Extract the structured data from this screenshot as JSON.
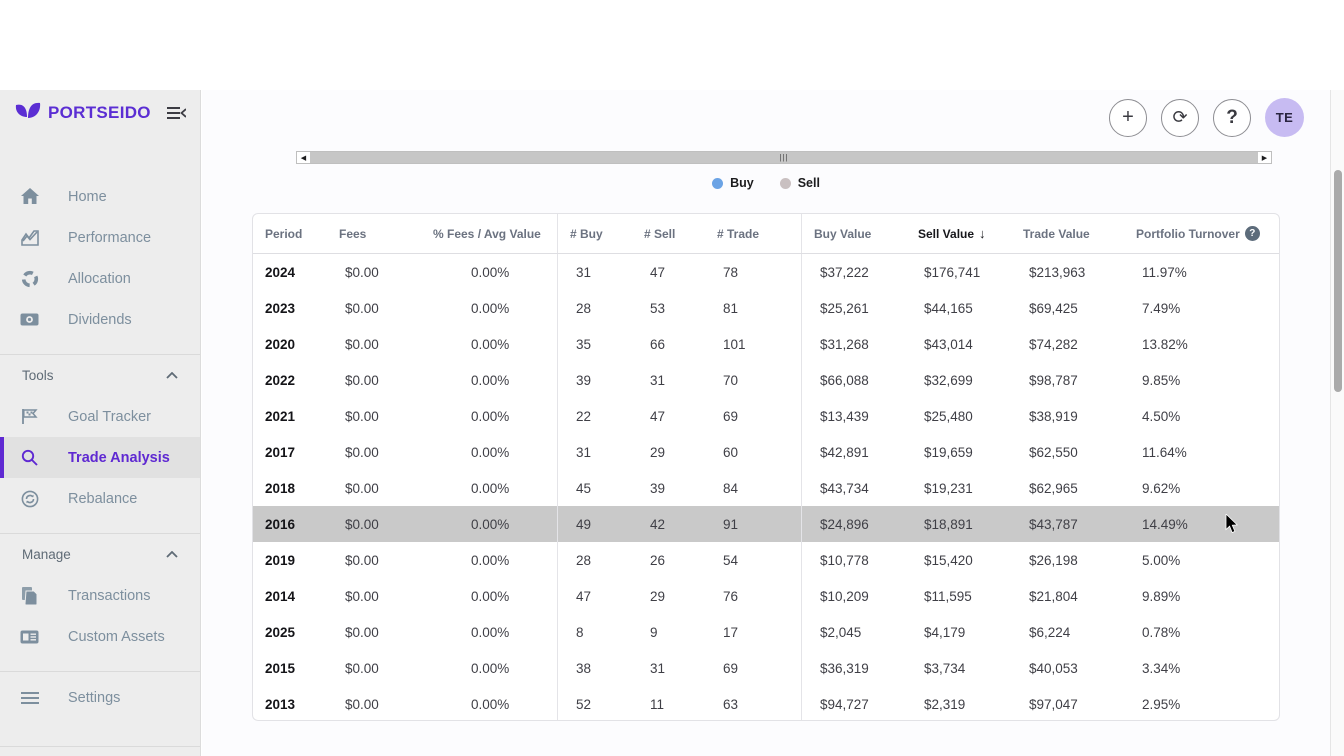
{
  "brand": {
    "name": "PORTSEIDO",
    "logo_color": "#5b2ed3"
  },
  "sidebar": {
    "items": [
      {
        "icon": "home-icon",
        "label": "Home"
      },
      {
        "icon": "performance-icon",
        "label": "Performance"
      },
      {
        "icon": "allocation-icon",
        "label": "Allocation"
      },
      {
        "icon": "dividends-icon",
        "label": "Dividends"
      }
    ],
    "tools_section": {
      "label": "Tools",
      "items": [
        {
          "icon": "flag-icon",
          "label": "Goal Tracker"
        },
        {
          "icon": "search-icon",
          "label": "Trade Analysis",
          "active": true
        },
        {
          "icon": "rebalance-icon",
          "label": "Rebalance"
        }
      ]
    },
    "manage_section": {
      "label": "Manage",
      "items": [
        {
          "icon": "documents-icon",
          "label": "Transactions"
        },
        {
          "icon": "card-icon",
          "label": "Custom Assets"
        }
      ]
    },
    "settings_label": "Settings"
  },
  "header": {
    "buttons": [
      {
        "icon": "plus-icon",
        "glyph": "+"
      },
      {
        "icon": "refresh-icon",
        "glyph": "⟳"
      },
      {
        "icon": "help-icon",
        "glyph": "?"
      }
    ],
    "avatar_initials": "TE"
  },
  "legend": {
    "buy_label": "Buy",
    "sell_label": "Sell",
    "buy_color": "#6ba3e5",
    "sell_color": "#c9c0c1"
  },
  "table": {
    "sorted_by": "Sell Value",
    "sort_direction": "desc",
    "highlight_color": "#c9c9c9",
    "highlighted_period": "2016",
    "columns": [
      {
        "label": "Period"
      },
      {
        "label": "Fees"
      },
      {
        "label": "% Fees / Avg Value"
      },
      {
        "label": "# Buy"
      },
      {
        "label": "# Sell"
      },
      {
        "label": "# Trade"
      },
      {
        "label": "Buy Value"
      },
      {
        "label": "Sell Value",
        "sorted": "desc"
      },
      {
        "label": "Trade Value"
      },
      {
        "label": "Portfolio Turnover",
        "help": true
      }
    ],
    "rows": [
      {
        "cells": [
          "2024",
          "$0.00",
          "0.00%",
          "31",
          "47",
          "78",
          "$37,222",
          "$176,741",
          "$213,963",
          "11.97%"
        ]
      },
      {
        "cells": [
          "2023",
          "$0.00",
          "0.00%",
          "28",
          "53",
          "81",
          "$25,261",
          "$44,165",
          "$69,425",
          "7.49%"
        ]
      },
      {
        "cells": [
          "2020",
          "$0.00",
          "0.00%",
          "35",
          "66",
          "101",
          "$31,268",
          "$43,014",
          "$74,282",
          "13.82%"
        ]
      },
      {
        "cells": [
          "2022",
          "$0.00",
          "0.00%",
          "39",
          "31",
          "70",
          "$66,088",
          "$32,699",
          "$98,787",
          "9.85%"
        ]
      },
      {
        "cells": [
          "2021",
          "$0.00",
          "0.00%",
          "22",
          "47",
          "69",
          "$13,439",
          "$25,480",
          "$38,919",
          "4.50%"
        ]
      },
      {
        "cells": [
          "2017",
          "$0.00",
          "0.00%",
          "31",
          "29",
          "60",
          "$42,891",
          "$19,659",
          "$62,550",
          "11.64%"
        ]
      },
      {
        "cells": [
          "2018",
          "$0.00",
          "0.00%",
          "45",
          "39",
          "84",
          "$43,734",
          "$19,231",
          "$62,965",
          "9.62%"
        ]
      },
      {
        "cells": [
          "2016",
          "$0.00",
          "0.00%",
          "49",
          "42",
          "91",
          "$24,896",
          "$18,891",
          "$43,787",
          "14.49%"
        ],
        "highlighted": true
      },
      {
        "cells": [
          "2019",
          "$0.00",
          "0.00%",
          "28",
          "26",
          "54",
          "$10,778",
          "$15,420",
          "$26,198",
          "5.00%"
        ]
      },
      {
        "cells": [
          "2014",
          "$0.00",
          "0.00%",
          "47",
          "29",
          "76",
          "$10,209",
          "$11,595",
          "$21,804",
          "9.89%"
        ]
      },
      {
        "cells": [
          "2025",
          "$0.00",
          "0.00%",
          "8",
          "9",
          "17",
          "$2,045",
          "$4,179",
          "$6,224",
          "0.78%"
        ]
      },
      {
        "cells": [
          "2015",
          "$0.00",
          "0.00%",
          "38",
          "31",
          "69",
          "$36,319",
          "$3,734",
          "$40,053",
          "3.34%"
        ]
      },
      {
        "cells": [
          "2013",
          "$0.00",
          "0.00%",
          "52",
          "11",
          "63",
          "$94,727",
          "$2,319",
          "$97,047",
          "2.95%"
        ]
      }
    ]
  }
}
